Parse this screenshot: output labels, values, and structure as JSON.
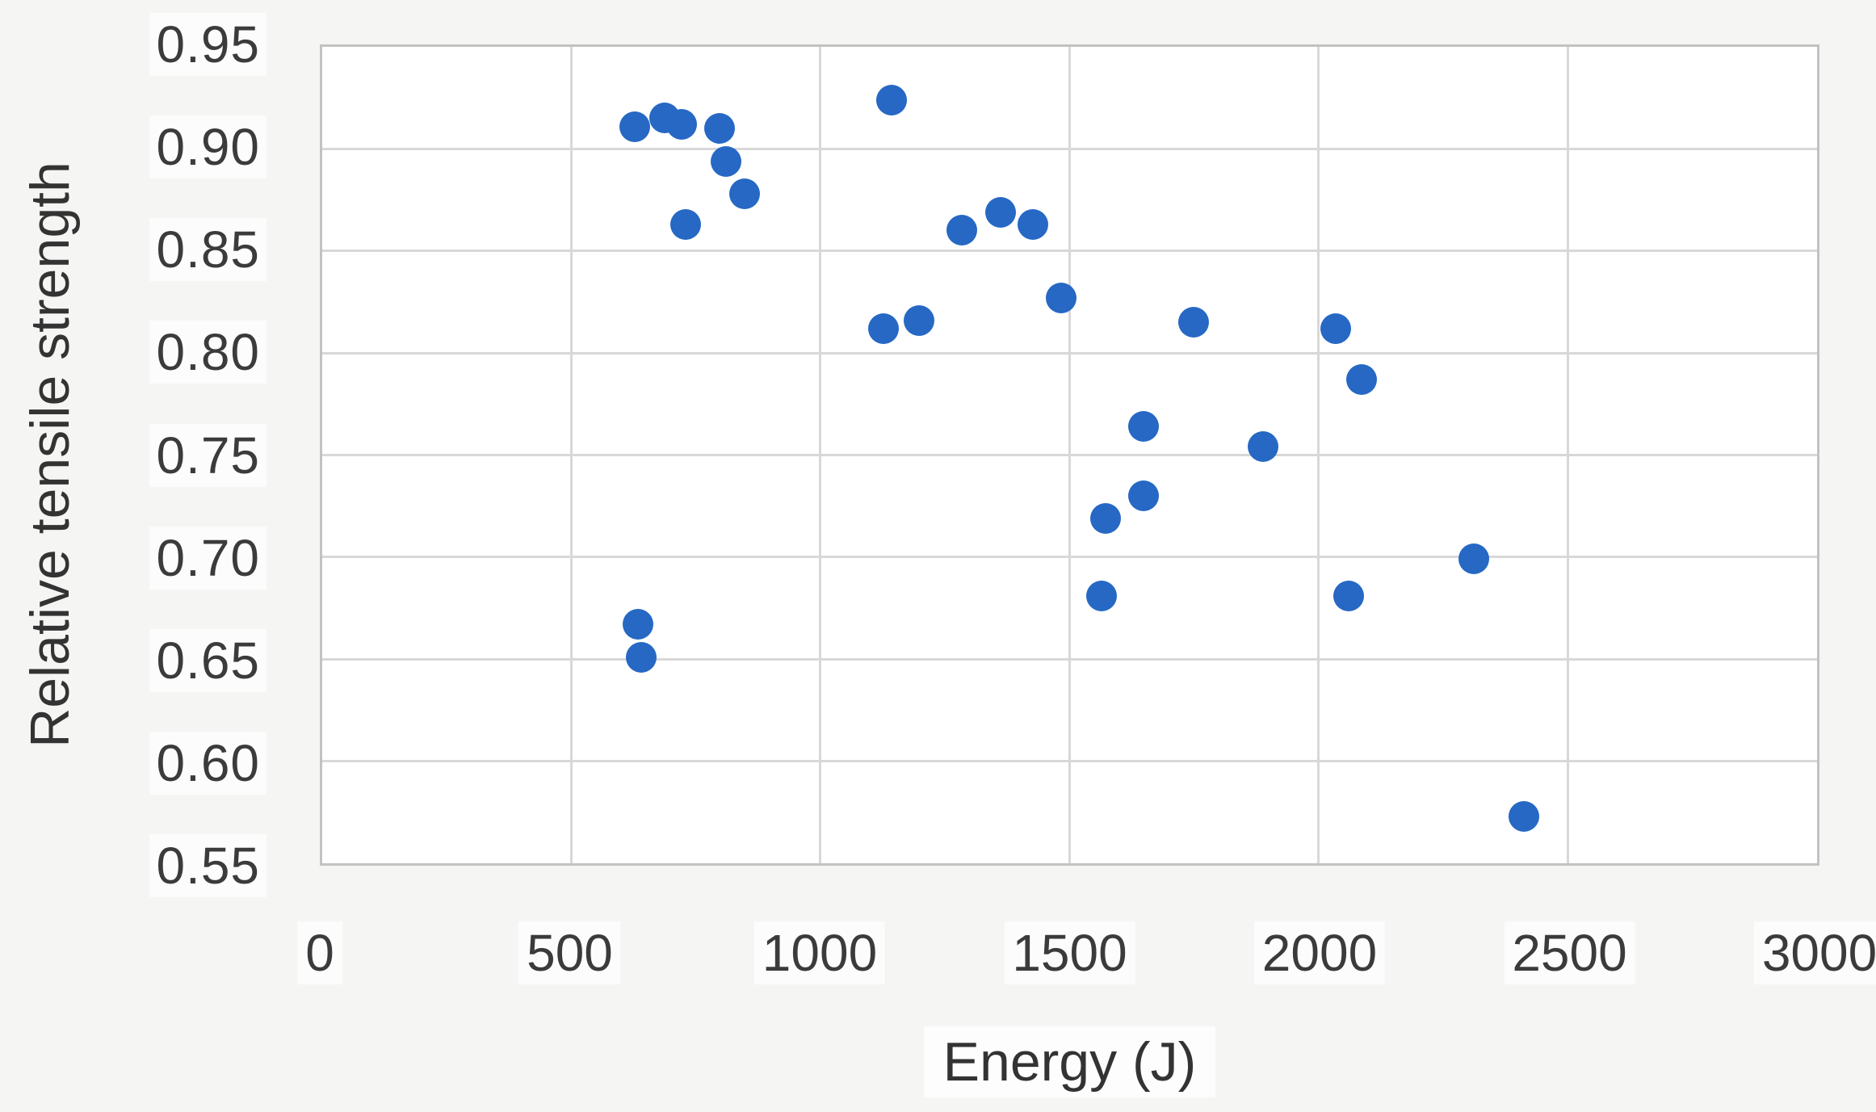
{
  "chart_data": {
    "type": "scatter",
    "title": "",
    "xlabel": "Energy (J)",
    "ylabel": "Relative tensile strength",
    "xlim": [
      0,
      3000
    ],
    "ylim": [
      0.55,
      0.95
    ],
    "grid": true,
    "legend": "none",
    "marker_color": "#2668c4",
    "x_ticks": [
      {
        "v": 0,
        "label": "0"
      },
      {
        "v": 500,
        "label": "500"
      },
      {
        "v": 1000,
        "label": "1000"
      },
      {
        "v": 1500,
        "label": "1500"
      },
      {
        "v": 2000,
        "label": "2000"
      },
      {
        "v": 2500,
        "label": "2500"
      },
      {
        "v": 3000,
        "label": "3000"
      }
    ],
    "y_ticks": [
      {
        "v": 0.95,
        "label": "0.95"
      },
      {
        "v": 0.9,
        "label": "0.90"
      },
      {
        "v": 0.85,
        "label": "0.85"
      },
      {
        "v": 0.8,
        "label": "0.80"
      },
      {
        "v": 0.75,
        "label": "0.75"
      },
      {
        "v": 0.7,
        "label": "0.70"
      },
      {
        "v": 0.65,
        "label": "0.65"
      },
      {
        "v": 0.6,
        "label": "0.60"
      },
      {
        "v": 0.55,
        "label": "0.55"
      }
    ],
    "points": [
      [
        628,
        0.911
      ],
      [
        633,
        0.667
      ],
      [
        640,
        0.651
      ],
      [
        687,
        0.915
      ],
      [
        722,
        0.912
      ],
      [
        730,
        0.863
      ],
      [
        797,
        0.91
      ],
      [
        810,
        0.894
      ],
      [
        847,
        0.878
      ],
      [
        1127,
        0.812
      ],
      [
        1143,
        0.924
      ],
      [
        1197,
        0.816
      ],
      [
        1283,
        0.86
      ],
      [
        1362,
        0.869
      ],
      [
        1427,
        0.863
      ],
      [
        1483,
        0.827
      ],
      [
        1564,
        0.681
      ],
      [
        1572,
        0.719
      ],
      [
        1649,
        0.764
      ],
      [
        1649,
        0.73
      ],
      [
        1749,
        0.815
      ],
      [
        1888,
        0.754
      ],
      [
        2034,
        0.812
      ],
      [
        2060,
        0.681
      ],
      [
        2086,
        0.787
      ],
      [
        2311,
        0.699
      ],
      [
        2411,
        0.573
      ]
    ]
  }
}
